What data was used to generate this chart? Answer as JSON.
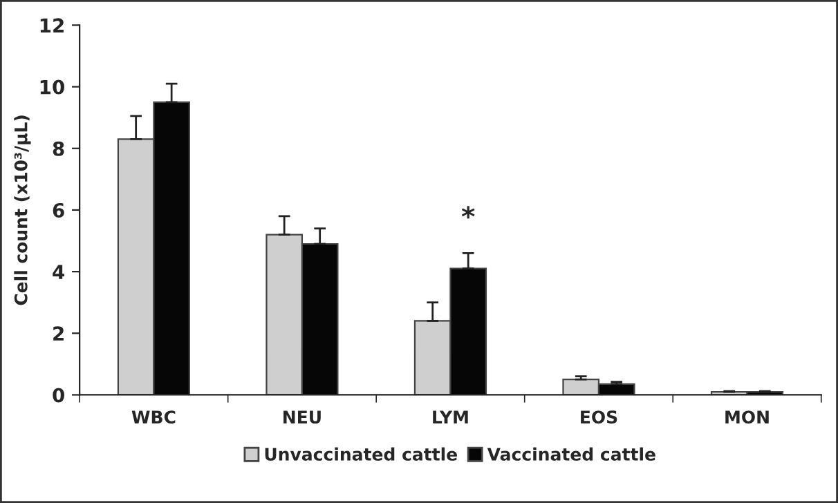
{
  "chart_data": {
    "type": "bar",
    "ylabel": "Cell count (x10³/μL)",
    "categories": [
      "WBC",
      "NEU",
      "LYM",
      "EOS",
      "MON"
    ],
    "series": [
      {
        "name": "Unvaccinated cattle",
        "color": "#d0cfd0",
        "values": [
          8.3,
          5.2,
          2.4,
          0.5,
          0.1
        ],
        "errors": [
          0.75,
          0.6,
          0.6,
          0.1,
          0.02
        ]
      },
      {
        "name": "Vaccinated cattle",
        "color": "#060606",
        "values": [
          9.5,
          4.9,
          4.1,
          0.35,
          0.1
        ],
        "errors": [
          0.6,
          0.5,
          0.5,
          0.07,
          0.02
        ]
      }
    ],
    "ylim": [
      0,
      12
    ],
    "yticks": [
      0,
      2,
      4,
      6,
      8,
      10,
      12
    ],
    "grid": false,
    "legend": "bottom",
    "annotations": [
      {
        "text": "*",
        "x": "LYM",
        "y": 4.1
      }
    ]
  }
}
